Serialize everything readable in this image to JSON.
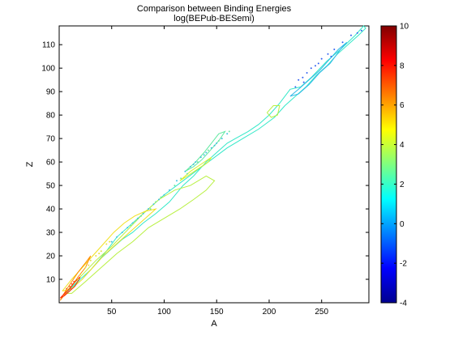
{
  "chart_data": {
    "type": "contour",
    "title": [
      "Comparison between Binding Energies",
      "log(BEPub-BESemi)"
    ],
    "xlabel": "A",
    "ylabel": "Z",
    "xlim": [
      0,
      295
    ],
    "ylim": [
      0,
      118
    ],
    "x_ticks": [
      50,
      100,
      150,
      200,
      250
    ],
    "y_ticks": [
      10,
      20,
      30,
      40,
      50,
      60,
      70,
      80,
      90,
      100,
      110
    ],
    "colorbar": {
      "range": [
        -4,
        10
      ],
      "ticks": [
        -4,
        -2,
        0,
        2,
        4,
        6,
        8,
        10
      ],
      "colormap": "jet"
    },
    "grid": false,
    "contours": [
      {
        "level": 1.2,
        "color": "#33e8c8",
        "points": [
          [
            2,
            2
          ],
          [
            15,
            8
          ],
          [
            30,
            14
          ],
          [
            45,
            22
          ],
          [
            55,
            28
          ],
          [
            70,
            34
          ],
          [
            85,
            40
          ],
          [
            100,
            46
          ],
          [
            115,
            51
          ],
          [
            130,
            56
          ],
          [
            145,
            61
          ],
          [
            160,
            66
          ],
          [
            175,
            70
          ],
          [
            190,
            74
          ],
          [
            205,
            79
          ],
          [
            215,
            84
          ],
          [
            225,
            88
          ],
          [
            235,
            92
          ],
          [
            245,
            97
          ],
          [
            255,
            101
          ],
          [
            265,
            106
          ],
          [
            275,
            110
          ],
          [
            285,
            114
          ],
          [
            292,
            117
          ],
          [
            290,
            118
          ],
          [
            282,
            114
          ],
          [
            268,
            108
          ],
          [
            255,
            103
          ],
          [
            240,
            96
          ],
          [
            230,
            92
          ],
          [
            220,
            91
          ],
          [
            210,
            85
          ],
          [
            200,
            80
          ],
          [
            190,
            76
          ],
          [
            180,
            73
          ],
          [
            168,
            70
          ],
          [
            160,
            68
          ],
          [
            150,
            64
          ],
          [
            140,
            60
          ],
          [
            128,
            54
          ],
          [
            118,
            50
          ],
          [
            105,
            43
          ],
          [
            92,
            38
          ],
          [
            80,
            34
          ],
          [
            70,
            30
          ],
          [
            60,
            27
          ],
          [
            50,
            23
          ],
          [
            40,
            19
          ],
          [
            30,
            14
          ],
          [
            20,
            10
          ],
          [
            10,
            5
          ],
          [
            2,
            2
          ]
        ]
      },
      {
        "level": 0.6,
        "color": "#30b8e8",
        "points": [
          [
            220,
            88
          ],
          [
            228,
            91
          ],
          [
            238,
            95
          ],
          [
            248,
            99
          ],
          [
            258,
            104
          ],
          [
            266,
            108
          ],
          [
            274,
            111
          ],
          [
            268,
            108
          ],
          [
            258,
            102
          ],
          [
            248,
            98
          ],
          [
            238,
            93
          ],
          [
            228,
            89
          ],
          [
            220,
            88
          ]
        ]
      },
      {
        "level": 2.4,
        "color": "#b8f040",
        "points": [
          [
            5,
            4
          ],
          [
            20,
            11
          ],
          [
            35,
            18
          ],
          [
            50,
            24
          ],
          [
            65,
            31
          ],
          [
            80,
            38
          ],
          [
            95,
            44
          ],
          [
            110,
            48
          ],
          [
            125,
            50
          ],
          [
            140,
            54
          ],
          [
            148,
            52
          ],
          [
            140,
            48
          ],
          [
            128,
            44
          ],
          [
            115,
            40
          ],
          [
            100,
            36
          ],
          [
            85,
            32
          ],
          [
            70,
            26
          ],
          [
            55,
            21
          ],
          [
            40,
            15
          ],
          [
            25,
            9
          ],
          [
            12,
            4
          ],
          [
            5,
            4
          ]
        ]
      },
      {
        "level": 2.4,
        "color": "#b8f040",
        "points": [
          [
            198,
            81
          ],
          [
            204,
            84
          ],
          [
            210,
            84
          ],
          [
            208,
            80
          ],
          [
            202,
            79
          ],
          [
            198,
            81
          ]
        ]
      },
      {
        "level": 3.6,
        "color": "#f0e020",
        "points": [
          [
            3,
            5
          ],
          [
            12,
            10
          ],
          [
            22,
            15
          ],
          [
            32,
            20
          ],
          [
            42,
            25
          ],
          [
            52,
            30
          ],
          [
            62,
            34
          ],
          [
            72,
            37
          ],
          [
            82,
            39
          ],
          [
            92,
            40
          ],
          [
            82,
            36
          ],
          [
            72,
            32
          ],
          [
            62,
            28
          ],
          [
            52,
            24
          ],
          [
            42,
            20
          ],
          [
            32,
            15
          ],
          [
            22,
            10
          ],
          [
            12,
            6
          ],
          [
            3,
            5
          ]
        ]
      },
      {
        "level": 5.2,
        "color": "#ff8c00",
        "points": [
          [
            1,
            1
          ],
          [
            6,
            5
          ],
          [
            12,
            9
          ],
          [
            18,
            13
          ],
          [
            25,
            17
          ],
          [
            30,
            20
          ],
          [
            25,
            15
          ],
          [
            18,
            11
          ],
          [
            12,
            7
          ],
          [
            6,
            4
          ],
          [
            1,
            1
          ]
        ]
      },
      {
        "level": 7.0,
        "color": "#ff2a00",
        "points": [
          [
            1,
            2
          ],
          [
            5,
            4
          ],
          [
            10,
            6
          ],
          [
            15,
            9
          ],
          [
            20,
            11
          ],
          [
            15,
            7
          ],
          [
            10,
            5
          ],
          [
            5,
            3
          ],
          [
            1,
            2
          ]
        ]
      },
      {
        "level": 2.0,
        "color": "#5fe8a0",
        "points": [
          [
            120,
            56
          ],
          [
            130,
            60
          ],
          [
            138,
            64
          ],
          [
            145,
            68
          ],
          [
            152,
            72
          ],
          [
            158,
            73
          ],
          [
            152,
            69
          ],
          [
            144,
            65
          ],
          [
            136,
            61
          ],
          [
            128,
            58
          ],
          [
            120,
            56
          ]
        ]
      },
      {
        "level": 3.0,
        "color": "#d8f028",
        "points": [
          [
            115,
            52
          ],
          [
            125,
            56
          ],
          [
            135,
            59
          ],
          [
            145,
            62
          ],
          [
            142,
            60
          ],
          [
            132,
            57
          ],
          [
            122,
            54
          ],
          [
            115,
            52
          ]
        ]
      }
    ],
    "scatter": [
      {
        "color": "#3060f0",
        "points": [
          [
            228,
            95
          ],
          [
            232,
            96
          ],
          [
            236,
            98
          ],
          [
            240,
            100
          ],
          [
            244,
            101
          ],
          [
            250,
            104
          ],
          [
            256,
            106
          ],
          [
            262,
            108
          ],
          [
            270,
            111
          ],
          [
            278,
            114
          ],
          [
            284,
            115
          ],
          [
            288,
            116
          ],
          [
            225,
            92
          ],
          [
            233,
            94
          ],
          [
            247,
            102
          ],
          [
            259,
            105
          ]
        ]
      },
      {
        "color": "#40c0e0",
        "points": [
          [
            120,
            56
          ],
          [
            125,
            58
          ],
          [
            130,
            60
          ],
          [
            135,
            62
          ],
          [
            140,
            64
          ],
          [
            145,
            66
          ],
          [
            150,
            68
          ],
          [
            155,
            70
          ],
          [
            160,
            72
          ],
          [
            128,
            59
          ],
          [
            138,
            63
          ],
          [
            148,
            67
          ],
          [
            112,
            52
          ],
          [
            105,
            48
          ],
          [
            100,
            46
          ],
          [
            95,
            44
          ],
          [
            90,
            42
          ],
          [
            85,
            40
          ],
          [
            80,
            38
          ],
          [
            75,
            36
          ],
          [
            70,
            34
          ],
          [
            65,
            32
          ],
          [
            60,
            30
          ],
          [
            55,
            28
          ],
          [
            50,
            26
          ]
        ]
      },
      {
        "color": "#70e8a0",
        "points": [
          [
            110,
            50
          ],
          [
            116,
            53
          ],
          [
            122,
            55
          ],
          [
            132,
            60
          ],
          [
            142,
            65
          ],
          [
            152,
            69
          ],
          [
            162,
            73
          ],
          [
            87,
            40
          ],
          [
            92,
            43
          ],
          [
            97,
            45
          ],
          [
            68,
            33
          ],
          [
            73,
            35
          ],
          [
            78,
            37
          ]
        ]
      },
      {
        "color": "#e8e040",
        "points": [
          [
            20,
            12
          ],
          [
            25,
            15
          ],
          [
            30,
            18
          ],
          [
            35,
            20
          ],
          [
            40,
            22
          ],
          [
            45,
            25
          ],
          [
            18,
            10
          ],
          [
            28,
            16
          ],
          [
            38,
            21
          ],
          [
            48,
            26
          ]
        ]
      },
      {
        "color": "#ff6030",
        "points": [
          [
            4,
            3
          ],
          [
            6,
            4
          ],
          [
            8,
            5
          ],
          [
            10,
            7
          ],
          [
            12,
            8
          ],
          [
            14,
            9
          ],
          [
            7,
            6
          ],
          [
            11,
            6
          ]
        ]
      }
    ]
  }
}
